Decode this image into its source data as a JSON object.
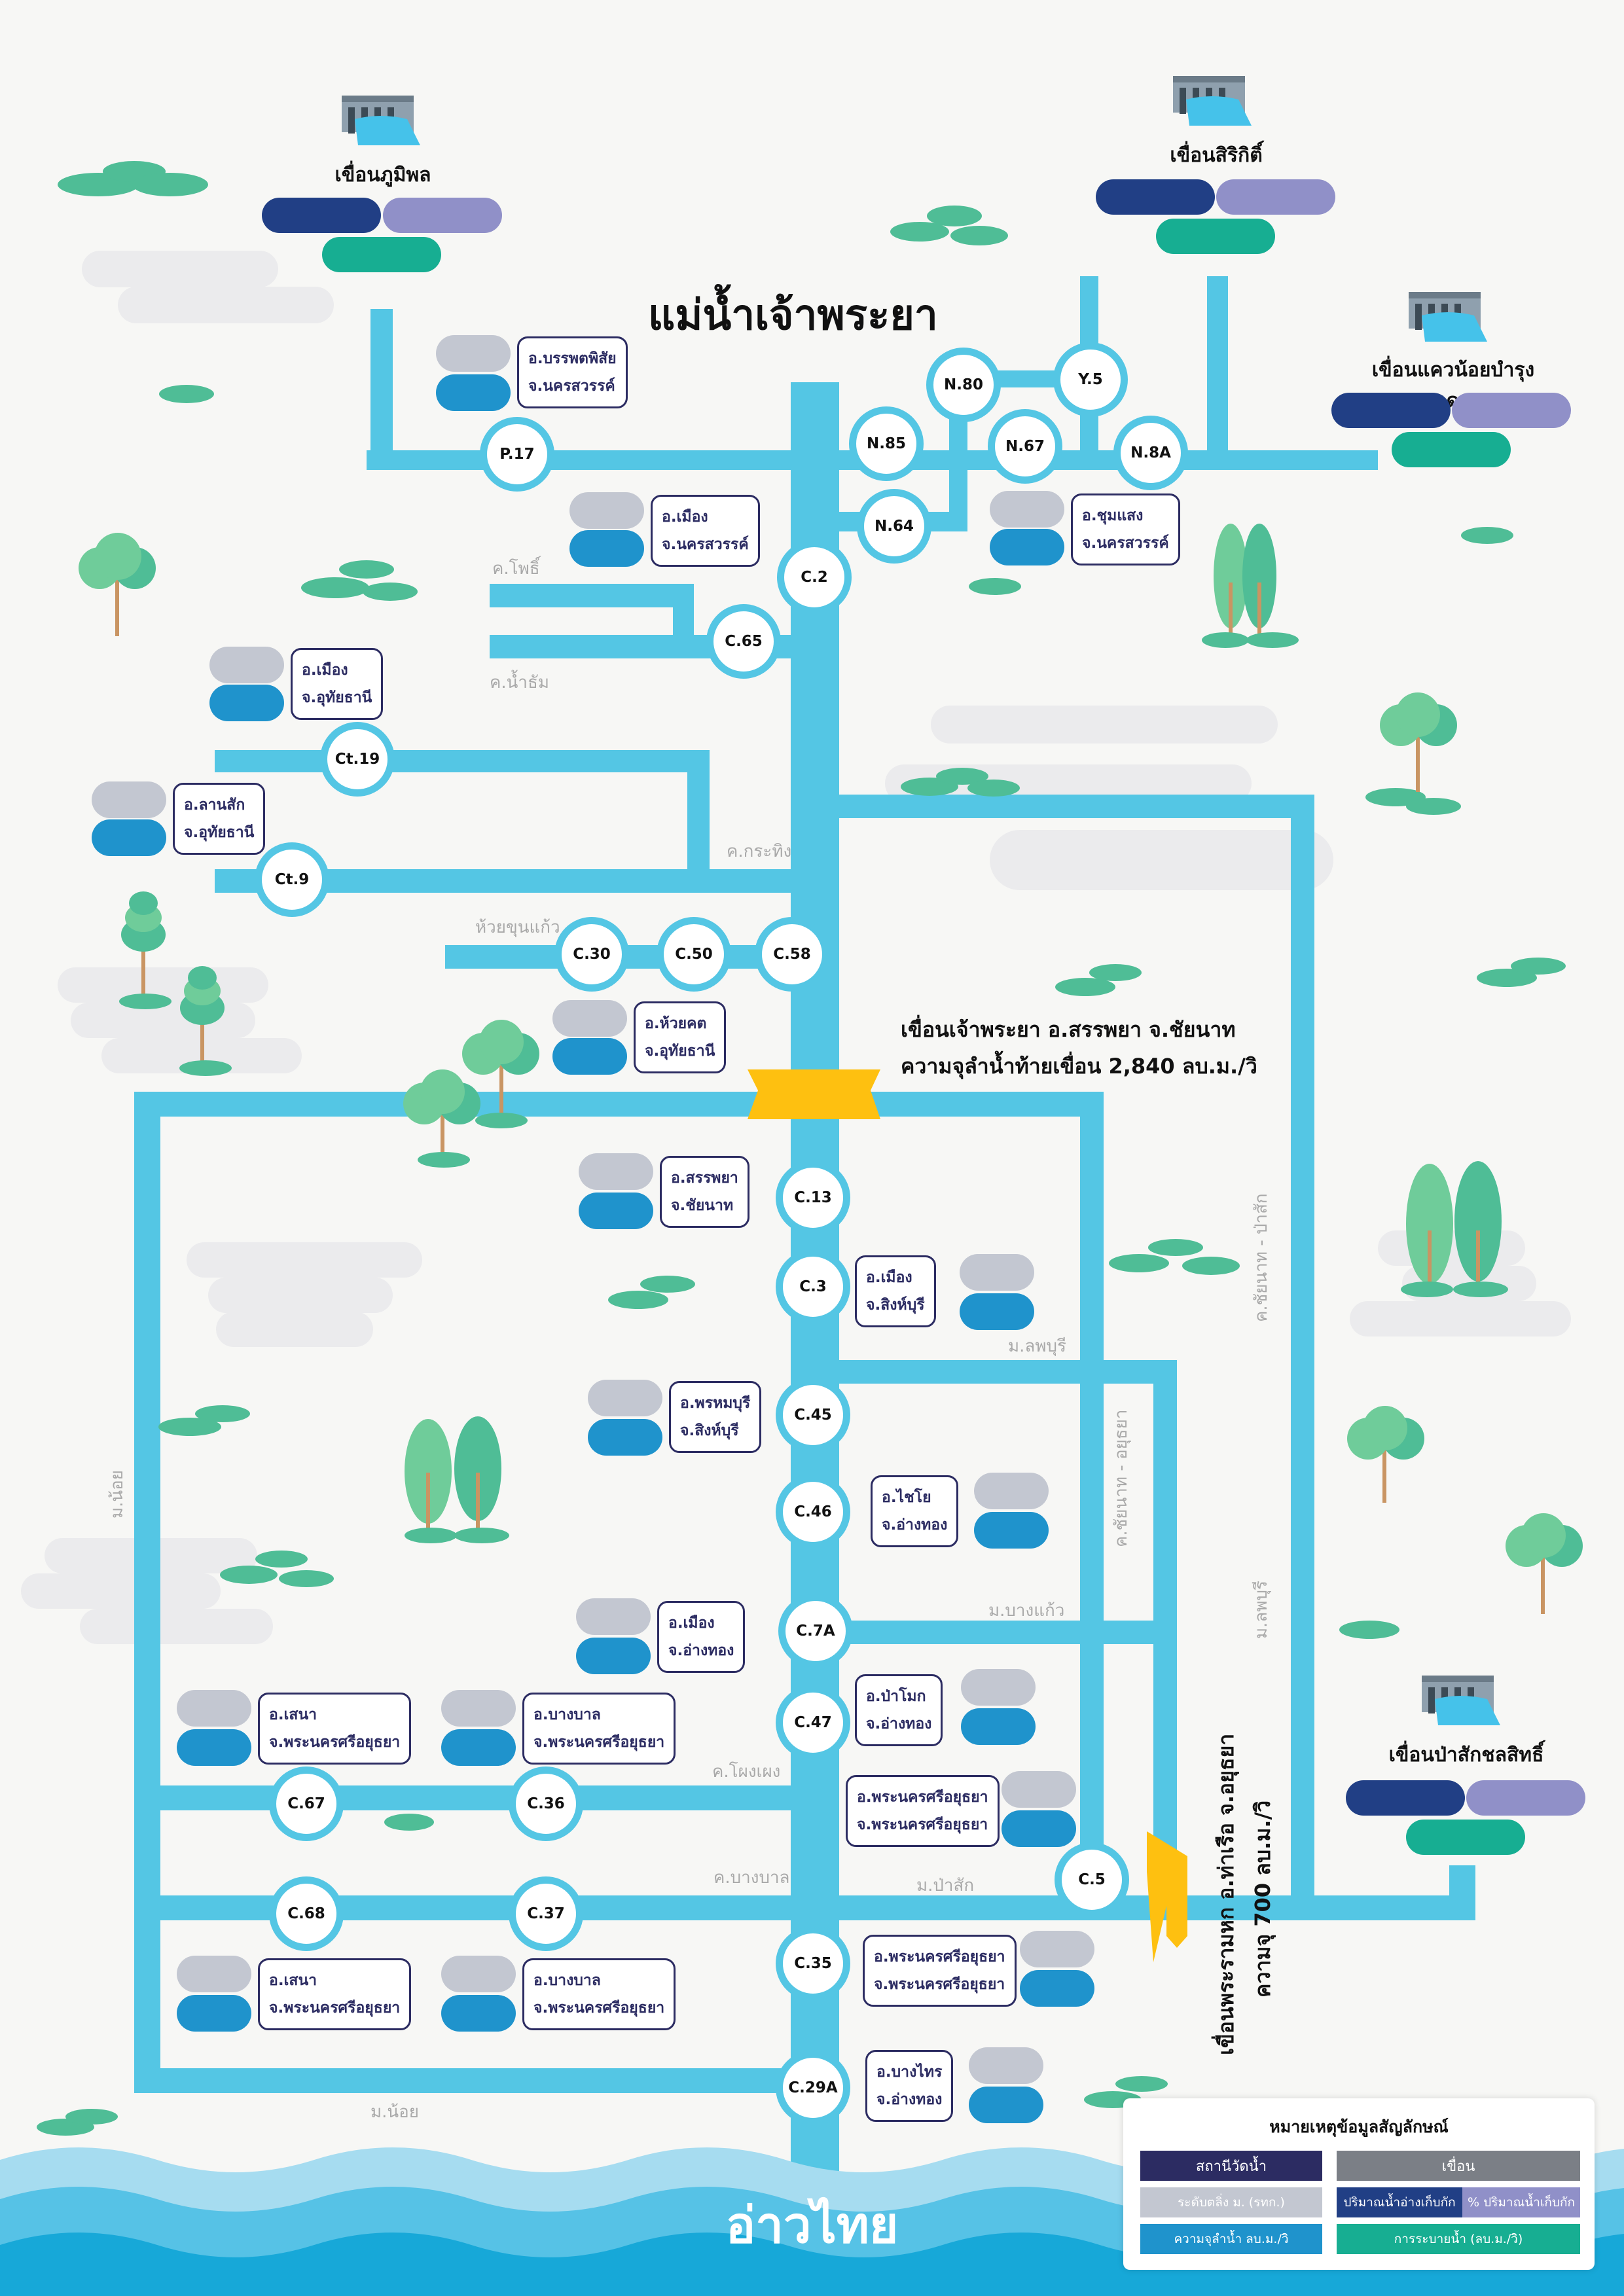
{
  "title": "แม่น้ำเจ้าพระยา",
  "gulf": "อ่าวไทย",
  "colors": {
    "river": "#54c6e4",
    "navy": "#213f85",
    "lavender": "#9090c8",
    "teal": "#17ae92",
    "level_gray": "#c3c7d1",
    "flow_blue": "#1f93cc",
    "dam_gate": "#fec010",
    "label_border": "#2c2c62"
  },
  "dams": {
    "bhumibol": "เขื่อนภูมิพล",
    "sirikit": "เขื่อนสิริกิติ์",
    "kwae_noi": "เขื่อนแควน้อยบำรุงแดน",
    "pasak": "เขื่อนป่าสักชลสิทธิ์"
  },
  "barrages": {
    "chao_phraya_line1": "เขื่อนเจ้าพระยา อ.สรรพยา จ.ชัยนาท",
    "chao_phraya_line2": "ความจุลำน้ำท้ายเขื่อน 2,840 ลบ.ม./วิ",
    "rama6_line1": "เขื่อนพระรามหก อ.ท่าเรือ จ.อยุธยา",
    "rama6_line2": "ความจุ 700 ลบ.ม./วิ"
  },
  "stations": {
    "p17": "P.17",
    "n85": "N.85",
    "n80": "N.80",
    "y5": "Y.5",
    "n67": "N.67",
    "n8a": "N.8A",
    "n64": "N.64",
    "c2": "C.2",
    "c65": "C.65",
    "ct19": "Ct.19",
    "ct9": "Ct.9",
    "c30": "C.30",
    "c50": "C.50",
    "c58": "C.58",
    "c13": "C.13",
    "c3": "C.3",
    "c45": "C.45",
    "c46": "C.46",
    "c7a": "C.7A",
    "c47": "C.47",
    "c67": "C.67",
    "c36": "C.36",
    "c5": "C.5",
    "c68": "C.68",
    "c37": "C.37",
    "c35": "C.35",
    "c29a": "C.29A"
  },
  "locations": {
    "p17": [
      "อ.บรรพตพิสัย",
      "จ.นครสวรรค์"
    ],
    "n64": [
      "อ.เมือง",
      "จ.นครสวรรค์"
    ],
    "n8a": [
      "อ.ชุมแสง",
      "จ.นครสวรรค์"
    ],
    "ct19": [
      "อ.เมือง",
      "จ.อุทัยธานี"
    ],
    "ct9": [
      "อ.ลานสัก",
      "จ.อุทัยธานี"
    ],
    "c58": [
      "อ.ห้วยคต",
      "จ.อุทัยธานี"
    ],
    "c13": [
      "อ.สรรพยา",
      "จ.ชัยนาท"
    ],
    "c3": [
      "อ.เมือง",
      "จ.สิงห์บุรี"
    ],
    "c45": [
      "อ.พรหมบุรี",
      "จ.สิงห์บุรี"
    ],
    "c46": [
      "อ.ไชโย",
      "จ.อ่างทอง"
    ],
    "c7a": [
      "อ.เมือง",
      "จ.อ่างทอง"
    ],
    "c47": [
      "อ.ป่าโมก",
      "จ.อ่างทอง"
    ],
    "c67": [
      "อ.เสนา",
      "จ.พระนครศรีอยุธยา"
    ],
    "c36": [
      "อ.บางบาล",
      "จ.พระนครศรีอยุธยา"
    ],
    "c5": [
      "อ.พระนครศรีอยุธยา",
      "จ.พระนครศรีอยุธยา"
    ],
    "c35": [
      "อ.พระนครศรีอยุธยา",
      "จ.พระนครศรีอยุธยา"
    ],
    "c68": [
      "อ.เสนา",
      "จ.พระนครศรีอยุธยา"
    ],
    "c37": [
      "อ.บางบาล",
      "จ.พระนครศรีอยุธยา"
    ],
    "c29a": [
      "อ.บางไทร",
      "จ.อ่างทอง"
    ]
  },
  "rivers": {
    "khlong_pho": "ค.โพธิ์",
    "khlong_namtham": "ค.น้ำธัม",
    "khlong_krathing": "ค.กระทิง",
    "huai_khun_kaeo": "ห้วยขุนแก้ว",
    "chainat_pasak": "ค.ชัยนาท - ป่าสัก",
    "mae_noi_left": "ม.น้อย",
    "lopburi_1": "ม.ลพบุรี",
    "chainat_ayutthaya": "ค.ชัยนาท - อยุธยา",
    "lopburi_2": "ม.ลพบุรี",
    "bang_kaeo": "ม.บางแก้ว",
    "khlong_phong_pheng": "ค.โผงเผง",
    "khlong_bang_ban": "ค.บางบาล",
    "pasak_river": "ม.ป่าสัก",
    "mae_noi_bottom": "ม.น้อย"
  },
  "legend": {
    "title": "หมายเหตุข้อมูลสัญลักษณ์",
    "station_header": "สถานีวัดน้ำ",
    "dam_header": "เขื่อน",
    "level": "ระดับตลิ่ง ม. (รทก.)",
    "flow": "ความจุลำน้ำ ลบ.ม./วิ",
    "storage": "ปริมาณน้ำอ่างเก็บกัก",
    "storage_pct": "% ปริมาณน้ำเก็บกัก",
    "release": "การระบายน้ำ (ลบ.ม./วิ)"
  }
}
